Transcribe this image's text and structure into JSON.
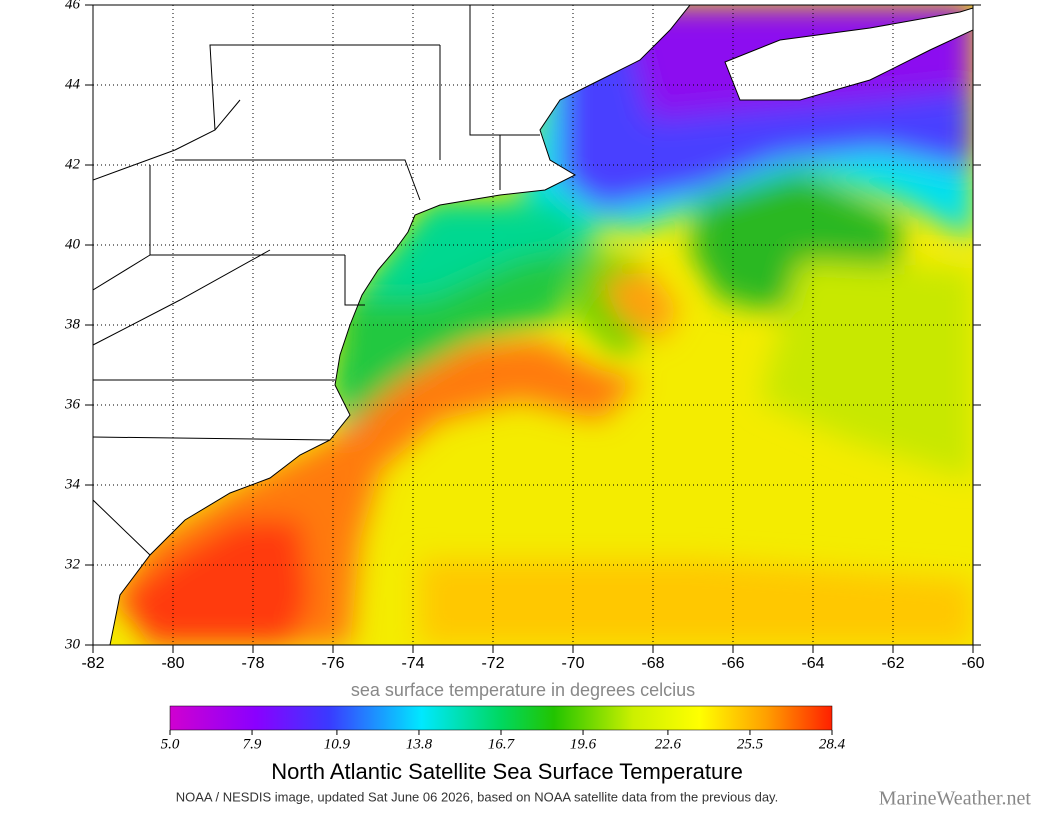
{
  "axes": {
    "xlim": [
      -82,
      -60
    ],
    "ylim": [
      30,
      46
    ],
    "xticks": [
      -82,
      -80,
      -78,
      -76,
      -74,
      -72,
      -70,
      -68,
      -66,
      -64,
      -62,
      -60
    ],
    "yticks": [
      30,
      32,
      34,
      36,
      38,
      40,
      42,
      44,
      46
    ]
  },
  "colorbar": {
    "label": "sea surface temperature in degrees celcius",
    "range": [
      5,
      28.4
    ],
    "ticks": [
      {
        "value": 5,
        "label": "5.0"
      },
      7.9,
      10.9,
      13.8,
      16.7,
      19.6,
      22.6,
      25.5,
      28.4
    ]
  },
  "title": "North Atlantic Satellite Sea Surface Temperature",
  "credit": "NOAA / NESDIS image, updated Sat June 06 2026, based on NOAA satellite data from the previous day.",
  "watermark": "MarineWeather.net"
}
